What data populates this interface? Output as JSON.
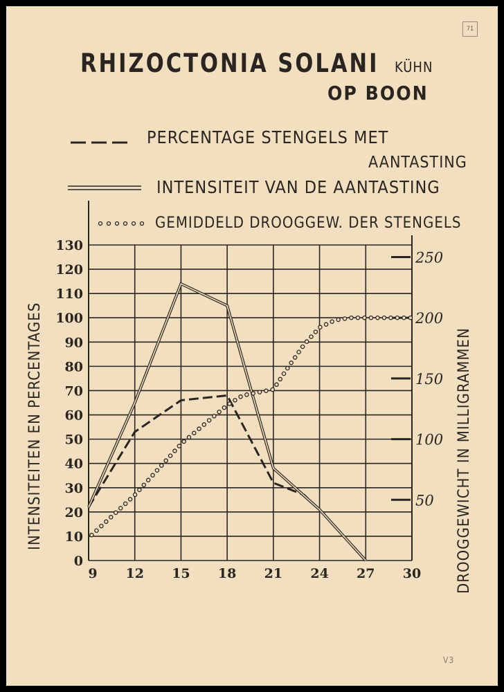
{
  "header": {
    "title": "RHIZOCTONIA SOLANI",
    "author": "KÜHN",
    "subtitle": "OP BOON",
    "stamp": "71",
    "corner_mark": "V3"
  },
  "chart_data": {
    "type": "line",
    "title": "RHIZOCTONIA SOLANI KÜHN OP BOON",
    "ylabel": "INTENSITEITEN EN PERCENTAGES",
    "y2label": "DROOGGEWICHT IN MILLIGRAMMEN",
    "xlabel": "",
    "x_ticks": [
      9,
      12,
      15,
      18,
      21,
      24,
      27,
      30
    ],
    "x_tick_labels": [
      "9",
      "12",
      "15",
      "18",
      "21",
      "24",
      "27",
      "30"
    ],
    "y_ticks": [
      0,
      10,
      20,
      30,
      40,
      50,
      60,
      70,
      80,
      90,
      100,
      110,
      120,
      130
    ],
    "y_tick_labels": [
      "0",
      "10",
      "20",
      "30",
      "40",
      "50",
      "60",
      "70",
      "80",
      "90",
      "100",
      "110",
      "120",
      "130"
    ],
    "y2_ticks": [
      50,
      100,
      150,
      200,
      250
    ],
    "y2_tick_labels": [
      "50",
      "100",
      "150",
      "200",
      "250"
    ],
    "xlim": [
      9,
      30
    ],
    "ylim": [
      0,
      130
    ],
    "y2lim": [
      0,
      260
    ],
    "grid": true,
    "legend_position": "top",
    "series": [
      {
        "name": "PERCENTAGE STENGELS MET AANTASTING",
        "style": "dashed",
        "axis": "left",
        "x": [
          9,
          12,
          15,
          18,
          21,
          23,
          24,
          27
        ],
        "y": [
          22,
          53,
          66,
          68,
          32,
          27,
          21,
          0
        ]
      },
      {
        "name": "INTENSITEIT VAN DE AANTASTING",
        "style": "double",
        "axis": "left",
        "x": [
          9,
          12,
          15,
          18,
          21,
          24,
          27
        ],
        "y": [
          22,
          65,
          114,
          105,
          38,
          21,
          0
        ]
      },
      {
        "name": "GEMIDDELD DROOGGEW. DER STENGELS",
        "style": "dotted",
        "axis": "right",
        "x": [
          9.2,
          12,
          15,
          18,
          19,
          21,
          22,
          23,
          24,
          25,
          26,
          27,
          28,
          29,
          30
        ],
        "y": [
          21,
          54,
          96,
          128,
          136,
          141,
          160,
          178,
          192,
          198,
          200,
          200,
          200,
          200,
          200
        ]
      }
    ],
    "colors": {
      "paper": "#f1dfc0",
      "ink": "#2a2520"
    }
  },
  "legend": {
    "line1a": "PERCENTAGE  STENGELS MET",
    "line1b": "AANTASTING",
    "line2": "INTENSITEIT VAN DE AANTASTING",
    "line3": "GEMIDDELD DROOGGEW. DER STENGELS"
  }
}
